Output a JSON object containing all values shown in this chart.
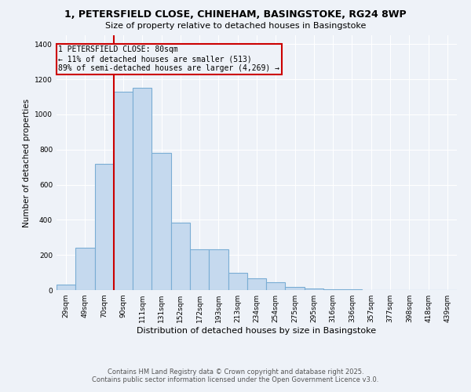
{
  "title_line1": "1, PETERSFIELD CLOSE, CHINEHAM, BASINGSTOKE, RG24 8WP",
  "title_line2": "Size of property relative to detached houses in Basingstoke",
  "xlabel": "Distribution of detached houses by size in Basingstoke",
  "ylabel": "Number of detached properties",
  "categories": [
    "29sqm",
    "49sqm",
    "70sqm",
    "90sqm",
    "111sqm",
    "131sqm",
    "152sqm",
    "172sqm",
    "193sqm",
    "213sqm",
    "234sqm",
    "254sqm",
    "275sqm",
    "295sqm",
    "316sqm",
    "336sqm",
    "357sqm",
    "377sqm",
    "398sqm",
    "418sqm",
    "439sqm"
  ],
  "values": [
    30,
    240,
    720,
    1130,
    1150,
    780,
    385,
    230,
    230,
    100,
    65,
    45,
    20,
    10,
    5,
    3,
    2,
    1,
    0,
    0,
    0
  ],
  "bar_color": "#c5d9ee",
  "bar_edgecolor": "#7aadd4",
  "ylim": [
    0,
    1450
  ],
  "yticks": [
    0,
    200,
    400,
    600,
    800,
    1000,
    1200,
    1400
  ],
  "vline_x": 2.5,
  "vline_color": "#cc0000",
  "box_edgecolor": "#cc0000",
  "background_color": "#eef2f8",
  "grid_color": "#ffffff",
  "annotation_title": "1 PETERSFIELD CLOSE: 80sqm",
  "annotation_line2": "← 11% of detached houses are smaller (513)",
  "annotation_line3": "89% of semi-detached houses are larger (4,269) →",
  "footer_line1": "Contains HM Land Registry data © Crown copyright and database right 2025.",
  "footer_line2": "Contains public sector information licensed under the Open Government Licence v3.0."
}
